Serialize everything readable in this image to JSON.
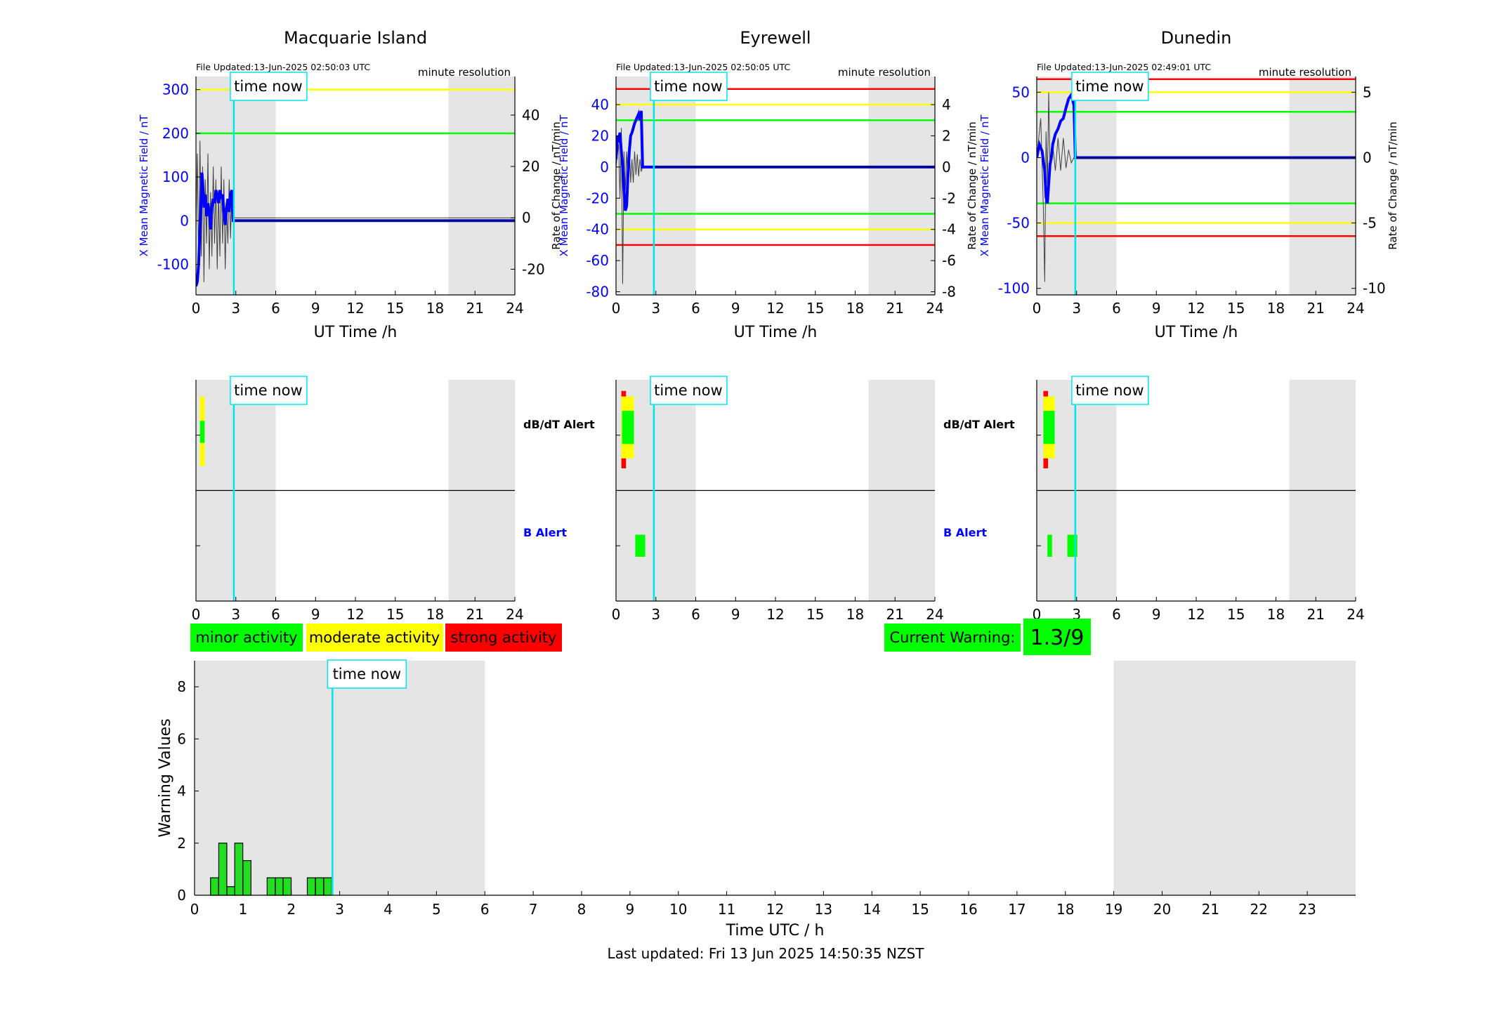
{
  "colors": {
    "field": "#0000ff",
    "rate": "#404040",
    "minor": "#00ff00",
    "moderate": "#ffff00",
    "strong": "#ff0000",
    "now": "#00e5ee",
    "night": "#e5e5e5",
    "bar": "#22dd22"
  },
  "common": {
    "xlabel": "UT Time /h",
    "ylabel_left": "X Mean Magnetic Field / nT",
    "ylabel_right": "Rate of Change / nT/min",
    "resolution": "minute resolution",
    "time_now": "time now",
    "dbdt_alert": "dB/dT Alert",
    "b_alert": "B Alert"
  },
  "stations": [
    {
      "name": "Macquarie Island",
      "file_updated": "File Updated:13-Jun-2025 02:50:03 UTC",
      "now_hour": 2.85,
      "night": [
        [
          0.05,
          6
        ],
        [
          19,
          24
        ]
      ],
      "ylim": [
        -170,
        330
      ],
      "yticks": [
        -100,
        0,
        100,
        200,
        300
      ],
      "y2lim": [
        -30,
        55
      ],
      "y2ticks": [
        -20,
        0,
        20,
        40
      ],
      "thresholds": [
        {
          "value": 300,
          "level": "moderate"
        },
        {
          "value": 200,
          "level": "minor"
        }
      ],
      "field_trace": [
        [
          0,
          -150
        ],
        [
          0.1,
          -140
        ],
        [
          0.2,
          -100
        ],
        [
          0.3,
          -20
        ],
        [
          0.4,
          60
        ],
        [
          0.45,
          110
        ],
        [
          0.5,
          90
        ],
        [
          0.6,
          30
        ],
        [
          0.7,
          60
        ],
        [
          0.8,
          10
        ],
        [
          0.9,
          40
        ],
        [
          1.0,
          20
        ],
        [
          1.1,
          -20
        ],
        [
          1.2,
          30
        ],
        [
          1.3,
          50
        ],
        [
          1.4,
          40
        ],
        [
          1.5,
          70
        ],
        [
          1.6,
          60
        ],
        [
          1.7,
          40
        ],
        [
          1.8,
          70
        ],
        [
          1.9,
          50
        ],
        [
          2.0,
          60
        ],
        [
          2.1,
          20
        ],
        [
          2.2,
          -10
        ],
        [
          2.3,
          30
        ],
        [
          2.4,
          50
        ],
        [
          2.5,
          20
        ],
        [
          2.6,
          60
        ],
        [
          2.7,
          70
        ],
        [
          2.8,
          0
        ],
        [
          3,
          0
        ],
        [
          24,
          0
        ]
      ],
      "rate_trace": [
        [
          0,
          -5
        ],
        [
          0.1,
          25
        ],
        [
          0.2,
          -20
        ],
        [
          0.3,
          30
        ],
        [
          0.4,
          -15
        ],
        [
          0.5,
          20
        ],
        [
          0.6,
          -25
        ],
        [
          0.7,
          15
        ],
        [
          0.8,
          -10
        ],
        [
          0.9,
          25
        ],
        [
          1.0,
          -20
        ],
        [
          1.1,
          10
        ],
        [
          1.2,
          -15
        ],
        [
          1.3,
          20
        ],
        [
          1.4,
          -10
        ],
        [
          1.5,
          15
        ],
        [
          1.6,
          -20
        ],
        [
          1.7,
          10
        ],
        [
          1.8,
          -15
        ],
        [
          1.9,
          20
        ],
        [
          2.0,
          -10
        ],
        [
          2.1,
          15
        ],
        [
          2.2,
          -20
        ],
        [
          2.3,
          5
        ],
        [
          2.4,
          -10
        ],
        [
          2.5,
          15
        ],
        [
          2.6,
          -8
        ],
        [
          2.7,
          10
        ],
        [
          2.8,
          0
        ],
        [
          3,
          0
        ],
        [
          24,
          0
        ]
      ],
      "dbdt_bars": [
        {
          "start": 0.3,
          "end": 0.65,
          "level": "moderate",
          "y1": 0.85,
          "y2": 0.22
        },
        {
          "start": 0.3,
          "end": 0.65,
          "level": "minor",
          "y1": 0.63,
          "y2": 0.43
        }
      ],
      "b_bars": []
    },
    {
      "name": "Eyrewell",
      "file_updated": "File Updated:13-Jun-2025 02:50:05 UTC",
      "now_hour": 2.85,
      "night": [
        [
          0,
          6
        ],
        [
          19,
          24
        ]
      ],
      "ylim": [
        -82,
        58
      ],
      "yticks": [
        -80,
        -60,
        -40,
        -20,
        0,
        20,
        40
      ],
      "y2lim": [
        -8.2,
        5.8
      ],
      "y2ticks": [
        -8,
        -6,
        -4,
        -2,
        0,
        2,
        4
      ],
      "thresholds": [
        {
          "value": 50,
          "level": "strong"
        },
        {
          "value": 40,
          "level": "moderate"
        },
        {
          "value": 30,
          "level": "minor"
        },
        {
          "value": -30,
          "level": "minor"
        },
        {
          "value": -40,
          "level": "moderate"
        },
        {
          "value": -50,
          "level": "strong"
        }
      ],
      "field_trace": [
        [
          0,
          5
        ],
        [
          0.1,
          20
        ],
        [
          0.2,
          18
        ],
        [
          0.3,
          22
        ],
        [
          0.4,
          10
        ],
        [
          0.5,
          0
        ],
        [
          0.6,
          -15
        ],
        [
          0.7,
          -28
        ],
        [
          0.8,
          -25
        ],
        [
          0.9,
          -5
        ],
        [
          1.0,
          10
        ],
        [
          1.1,
          20
        ],
        [
          1.2,
          22
        ],
        [
          1.3,
          25
        ],
        [
          1.4,
          28
        ],
        [
          1.5,
          30
        ],
        [
          1.6,
          32
        ],
        [
          1.7,
          34
        ],
        [
          1.8,
          30
        ],
        [
          1.9,
          36
        ],
        [
          2.0,
          0
        ],
        [
          3,
          0
        ],
        [
          24,
          0
        ]
      ],
      "rate_trace": [
        [
          0,
          0
        ],
        [
          0.2,
          1.5
        ],
        [
          0.3,
          -2
        ],
        [
          0.4,
          2.5
        ],
        [
          0.5,
          -7.5
        ],
        [
          0.6,
          1
        ],
        [
          0.7,
          -1.5
        ],
        [
          0.8,
          1
        ],
        [
          0.9,
          -1
        ],
        [
          1.0,
          1.5
        ],
        [
          1.1,
          -1
        ],
        [
          1.2,
          0.5
        ],
        [
          1.3,
          -1
        ],
        [
          1.4,
          1
        ],
        [
          1.5,
          -0.5
        ],
        [
          1.6,
          0.8
        ],
        [
          1.7,
          -0.6
        ],
        [
          1.8,
          0.5
        ],
        [
          1.9,
          -0.3
        ],
        [
          2.0,
          0
        ],
        [
          24,
          0
        ]
      ],
      "dbdt_bars": [
        {
          "start": 0.4,
          "end": 0.75,
          "level": "strong",
          "y1": 0.9,
          "y2": 0.2
        },
        {
          "start": 0.4,
          "end": 1.35,
          "level": "moderate",
          "y1": 0.85,
          "y2": 0.29
        },
        {
          "start": 0.45,
          "end": 1.35,
          "level": "minor",
          "y1": 0.72,
          "y2": 0.42
        }
      ],
      "b_bars": [
        {
          "start": 1.45,
          "end": 2.2,
          "level": "minor",
          "y1": 0.6,
          "y2": 0.4
        }
      ]
    },
    {
      "name": "Dunedin",
      "file_updated": "File Updated:13-Jun-2025 02:49:01 UTC",
      "now_hour": 2.9,
      "night": [
        [
          0,
          6
        ],
        [
          19,
          24
        ]
      ],
      "ylim": [
        -105,
        62
      ],
      "yticks": [
        -100,
        -50,
        0,
        50
      ],
      "y2lim": [
        -10.5,
        6.2
      ],
      "y2ticks": [
        -10,
        -5,
        0,
        5
      ],
      "thresholds": [
        {
          "value": 60,
          "level": "strong"
        },
        {
          "value": 50,
          "level": "moderate"
        },
        {
          "value": 35,
          "level": "minor"
        },
        {
          "value": -35,
          "level": "minor"
        },
        {
          "value": -50,
          "level": "moderate"
        },
        {
          "value": -60,
          "level": "strong"
        }
      ],
      "field_trace": [
        [
          0,
          0
        ],
        [
          0.2,
          10
        ],
        [
          0.4,
          5
        ],
        [
          0.6,
          -10
        ],
        [
          0.7,
          -30
        ],
        [
          0.8,
          -35
        ],
        [
          0.9,
          -20
        ],
        [
          1.0,
          -5
        ],
        [
          1.1,
          0
        ],
        [
          1.2,
          10
        ],
        [
          1.4,
          18
        ],
        [
          1.6,
          22
        ],
        [
          1.8,
          28
        ],
        [
          2.0,
          30
        ],
        [
          2.2,
          38
        ],
        [
          2.4,
          45
        ],
        [
          2.6,
          48
        ],
        [
          2.8,
          40
        ],
        [
          2.9,
          0
        ],
        [
          24,
          0
        ]
      ],
      "rate_trace": [
        [
          0,
          0
        ],
        [
          0.3,
          3
        ],
        [
          0.5,
          -4
        ],
        [
          0.6,
          -9.5
        ],
        [
          0.7,
          2
        ],
        [
          0.8,
          -2
        ],
        [
          0.9,
          5
        ],
        [
          1.0,
          -1
        ],
        [
          1.2,
          1
        ],
        [
          1.4,
          -1
        ],
        [
          1.6,
          1.5
        ],
        [
          1.8,
          -1
        ],
        [
          2.0,
          1.5
        ],
        [
          2.2,
          -0.8
        ],
        [
          2.4,
          0.6
        ],
        [
          2.6,
          -0.4
        ],
        [
          2.8,
          0
        ],
        [
          24,
          0
        ]
      ],
      "dbdt_bars": [
        {
          "start": 0.5,
          "end": 0.85,
          "level": "strong",
          "y1": 0.9,
          "y2": 0.2
        },
        {
          "start": 0.5,
          "end": 1.35,
          "level": "moderate",
          "y1": 0.85,
          "y2": 0.29
        },
        {
          "start": 0.5,
          "end": 1.35,
          "level": "minor",
          "y1": 0.72,
          "y2": 0.42
        }
      ],
      "b_bars": [
        {
          "start": 0.8,
          "end": 1.15,
          "level": "minor",
          "y1": 0.6,
          "y2": 0.4
        },
        {
          "start": 2.3,
          "end": 3.05,
          "level": "minor",
          "y1": 0.6,
          "y2": 0.4
        }
      ]
    }
  ],
  "legend": {
    "minor": "minor activity",
    "moderate": "moderate activity",
    "strong": "strong activity"
  },
  "current_warning": {
    "label": "Current Warning:",
    "value": "1.3/9"
  },
  "bottom": {
    "xlabel": "Time UTC / h",
    "ylabel": "Warning Values",
    "ylim": [
      0,
      9
    ],
    "yticks": [
      0,
      2,
      4,
      6,
      8
    ],
    "xticks": [
      0,
      1,
      2,
      3,
      4,
      5,
      6,
      7,
      8,
      9,
      10,
      11,
      12,
      13,
      14,
      15,
      16,
      17,
      18,
      19,
      20,
      21,
      22,
      23
    ],
    "night": [
      [
        0,
        6
      ],
      [
        19,
        24
      ]
    ],
    "now_hour": 2.85,
    "time_now": "time now"
  },
  "last_updated": "Last updated: Fri 13 Jun 2025 14:50:35 NZST",
  "chart_data": {
    "type": "bar",
    "title": "",
    "xlabel": "Time UTC / h",
    "ylabel": "Warning Values",
    "ylim": [
      0,
      9
    ],
    "x": [
      0.33,
      0.5,
      0.67,
      0.83,
      1.0,
      1.5,
      1.67,
      1.83,
      2.33,
      2.5,
      2.67
    ],
    "values": [
      0.67,
      2,
      0.33,
      2,
      1.33,
      0.67,
      0.67,
      0.67,
      0.67,
      0.67,
      0.67
    ],
    "bin_width_h": 0.1667,
    "current_warning": 1.3,
    "max_warning": 9
  }
}
